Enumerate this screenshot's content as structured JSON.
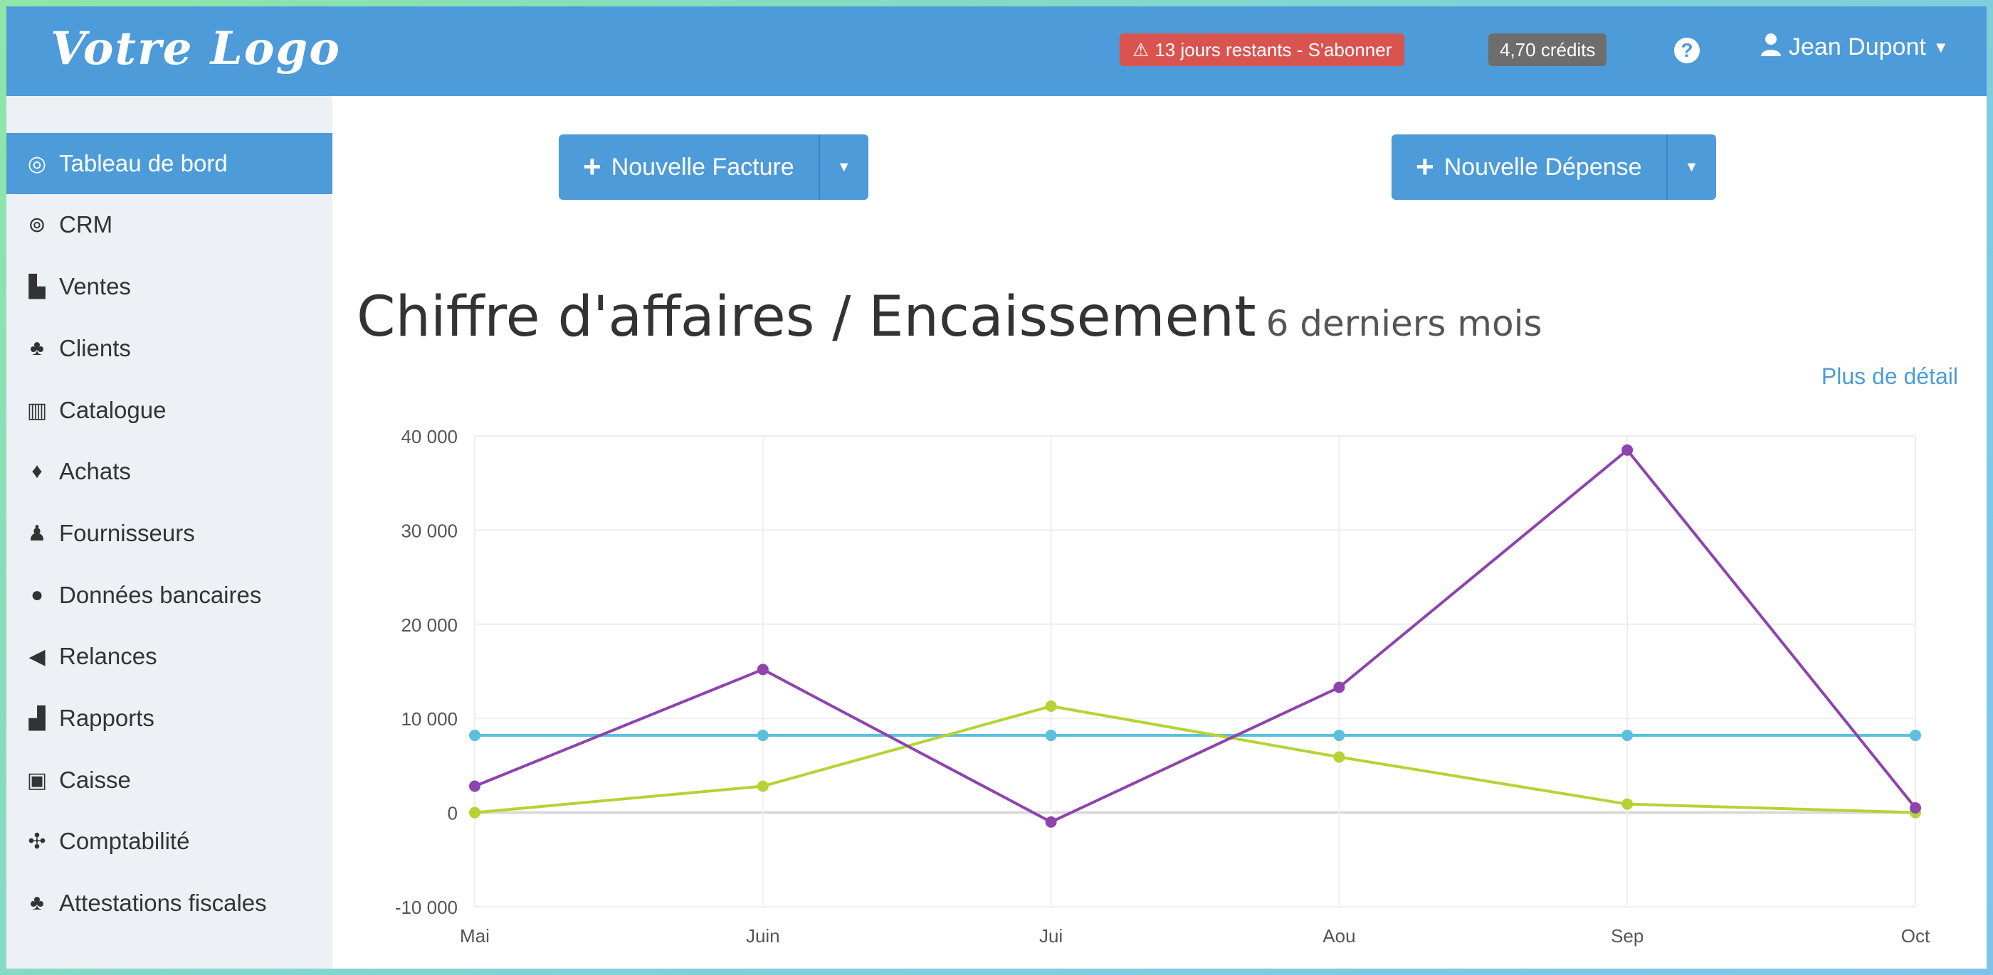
{
  "header": {
    "logo": "Votre Logo",
    "trial_badge": "13 jours restants - S'abonner",
    "credits_badge": "4,70 crédits",
    "help_icon": "question-circle-icon",
    "user_name": "Jean Dupont"
  },
  "sidebar": {
    "items": [
      {
        "label": "Tableau de bord",
        "icon": "dashboard-icon",
        "active": true
      },
      {
        "label": "CRM",
        "icon": "crm-icon"
      },
      {
        "label": "Ventes",
        "icon": "sales-icon"
      },
      {
        "label": "Clients",
        "icon": "clients-icon"
      },
      {
        "label": "Catalogue",
        "icon": "barcode-icon"
      },
      {
        "label": "Achats",
        "icon": "purchases-icon"
      },
      {
        "label": "Fournisseurs",
        "icon": "user-icon"
      },
      {
        "label": "Données bancaires",
        "icon": "piggy-bank-icon"
      },
      {
        "label": "Relances",
        "icon": "megaphone-icon"
      },
      {
        "label": "Rapports",
        "icon": "bar-chart-icon"
      },
      {
        "label": "Caisse",
        "icon": "cash-register-icon"
      },
      {
        "label": "Comptabilité",
        "icon": "accounting-icon"
      },
      {
        "label": "Attestations fiscales",
        "icon": "users-icon"
      }
    ]
  },
  "actions": {
    "new_invoice": "Nouvelle Facture",
    "new_expense": "Nouvelle Dépense"
  },
  "chart": {
    "title": "Chiffre d'affaires / Encaissement",
    "subtitle": "6 derniers mois",
    "detail_link": "Plus de détail"
  },
  "chart_data": {
    "type": "line",
    "categories": [
      "Mai",
      "Juin",
      "Jui",
      "Aou",
      "Sep",
      "Oct"
    ],
    "ylim": [
      -10000,
      40000
    ],
    "yticks": [
      -10000,
      0,
      10000,
      20000,
      30000,
      40000
    ],
    "ytick_labels": [
      "-10 000",
      "0",
      "10 000",
      "20 000",
      "30 000",
      "40 000"
    ],
    "grid": true,
    "series": [
      {
        "color": "#8e44ad",
        "values": [
          2800,
          15200,
          -1000,
          13300,
          38500,
          500
        ]
      },
      {
        "color": "#b5d334",
        "values": [
          0,
          2800,
          11300,
          5900,
          900,
          0
        ]
      },
      {
        "color": "#5bc0de",
        "values": [
          8200,
          8200,
          8200,
          8200,
          8200,
          8200
        ]
      }
    ]
  }
}
